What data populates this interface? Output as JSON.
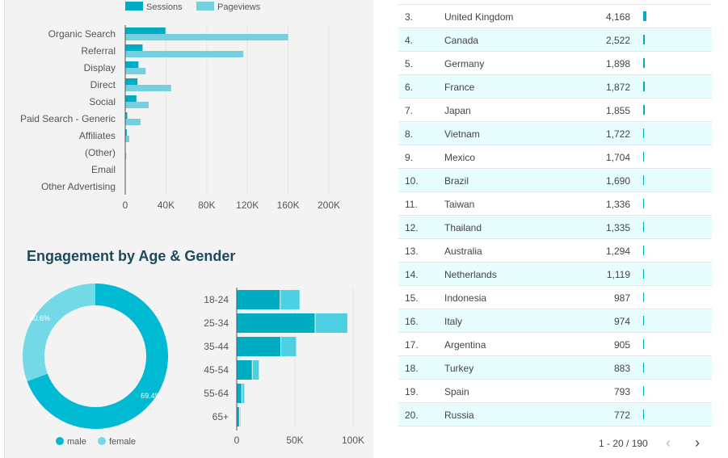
{
  "channels_chart": {
    "type": "bar",
    "orientation": "horizontal",
    "legend": [
      "Sessions",
      "Pageviews"
    ],
    "legend_position": "top",
    "categories": [
      "Organic Search",
      "Referral",
      "Display",
      "Direct",
      "Social",
      "Paid Search - Generic",
      "Affiliates",
      "(Other)",
      "Email",
      "Other Advertising"
    ],
    "series": [
      {
        "name": "Sessions",
        "values": [
          39500,
          17000,
          13000,
          12000,
          11000,
          2000,
          1500,
          300,
          100,
          0
        ]
      },
      {
        "name": "Pageviews",
        "values": [
          160000,
          116000,
          20000,
          45000,
          23000,
          15000,
          4000,
          1000,
          200,
          0
        ]
      }
    ],
    "xticks": [
      "0",
      "40K",
      "80K",
      "120K",
      "160K",
      "200K"
    ],
    "xlim": [
      0,
      200000
    ]
  },
  "engagement": {
    "title": "Engagement by Age & Gender"
  },
  "chart_data": [
    {
      "type": "pie",
      "donut": true,
      "labels": [
        "male",
        "female"
      ],
      "values": [
        69.4,
        30.6
      ],
      "data_labels": [
        "69.4%",
        "30.6%"
      ],
      "legend_position": "bottom"
    },
    {
      "type": "bar",
      "orientation": "horizontal",
      "stacked": true,
      "categories": [
        "18-24",
        "25-34",
        "35-44",
        "45-54",
        "55-64",
        "65+"
      ],
      "series": [
        {
          "name": "male",
          "values": [
            37000,
            67000,
            37500,
            13000,
            4000,
            2000
          ]
        },
        {
          "name": "female",
          "values": [
            17000,
            28000,
            13500,
            6000,
            2500,
            1000
          ]
        }
      ],
      "xticks": [
        "0",
        "50K",
        "100K"
      ],
      "xlim": [
        0,
        100000
      ]
    }
  ],
  "colors": {
    "sessions": "#00acc1",
    "pageviews": "#74d0de",
    "male": "#00b9d3",
    "female": "#74d9e6"
  },
  "countries": [
    {
      "rank": "3.",
      "name": "United Kingdom",
      "value": "4,168",
      "n": 4168
    },
    {
      "rank": "4.",
      "name": "Canada",
      "value": "2,522",
      "n": 2522
    },
    {
      "rank": "5.",
      "name": "Germany",
      "value": "1,898",
      "n": 1898
    },
    {
      "rank": "6.",
      "name": "France",
      "value": "1,872",
      "n": 1872
    },
    {
      "rank": "7.",
      "name": "Japan",
      "value": "1,855",
      "n": 1855
    },
    {
      "rank": "8.",
      "name": "Vietnam",
      "value": "1,722",
      "n": 1722
    },
    {
      "rank": "9.",
      "name": "Mexico",
      "value": "1,704",
      "n": 1704
    },
    {
      "rank": "10.",
      "name": "Brazil",
      "value": "1,690",
      "n": 1690
    },
    {
      "rank": "11.",
      "name": "Taiwan",
      "value": "1,336",
      "n": 1336
    },
    {
      "rank": "12.",
      "name": "Thailand",
      "value": "1,335",
      "n": 1335
    },
    {
      "rank": "13.",
      "name": "Australia",
      "value": "1,294",
      "n": 1294
    },
    {
      "rank": "14.",
      "name": "Netherlands",
      "value": "1,119",
      "n": 1119
    },
    {
      "rank": "15.",
      "name": "Indonesia",
      "value": "987",
      "n": 987
    },
    {
      "rank": "16.",
      "name": "Italy",
      "value": "974",
      "n": 974
    },
    {
      "rank": "17.",
      "name": "Argentina",
      "value": "905",
      "n": 905
    },
    {
      "rank": "18.",
      "name": "Turkey",
      "value": "883",
      "n": 883
    },
    {
      "rank": "19.",
      "name": "Spain",
      "value": "793",
      "n": 793
    },
    {
      "rank": "20.",
      "name": "Russia",
      "value": "772",
      "n": 772
    }
  ],
  "pager": {
    "text": "1 - 20 / 190",
    "prev": "‹",
    "next": "›"
  }
}
